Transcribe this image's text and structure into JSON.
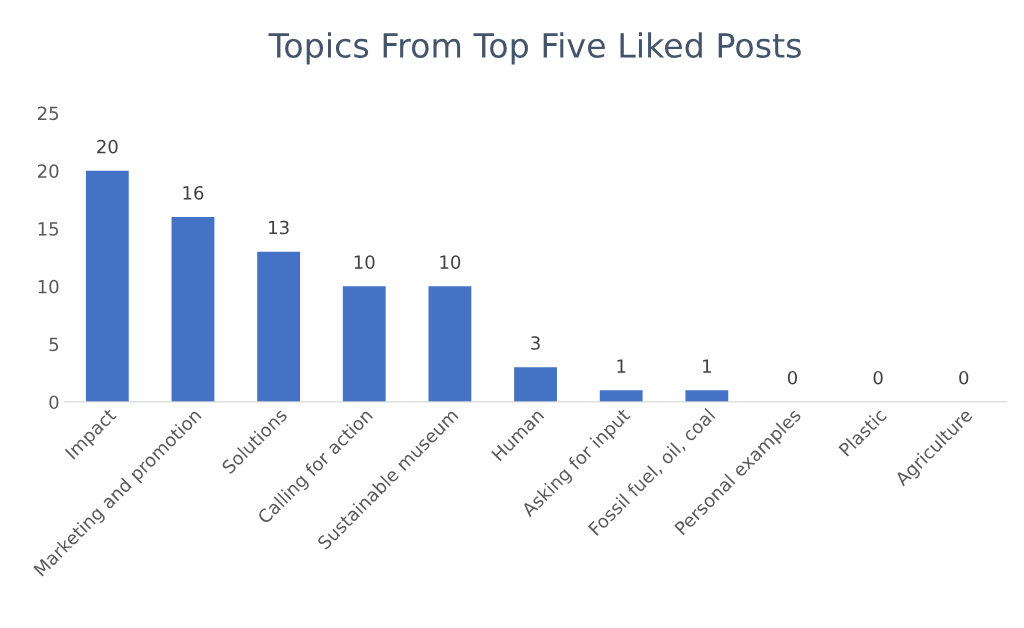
{
  "chart_data": {
    "type": "bar",
    "title": "Topics From Top Five Liked Posts",
    "categories": [
      "Impact",
      "Marketing and promotion",
      "Solutions",
      "Calling for action",
      "Sustainable museum",
      "Human",
      "Asking for input",
      "Fossil fuel, oil, coal",
      "Personal examples",
      "Plastic",
      "Agriculture"
    ],
    "values": [
      20,
      16,
      13,
      10,
      10,
      3,
      1,
      1,
      0,
      0,
      0
    ],
    "color": "#4472c4",
    "ylim": [
      0,
      25
    ],
    "yticks": [
      0,
      5,
      10,
      15,
      20,
      25
    ],
    "grid": false,
    "data_labels": true
  }
}
